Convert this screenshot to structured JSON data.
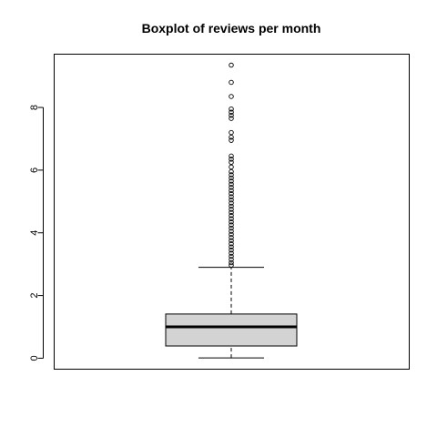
{
  "chart_data": {
    "type": "boxplot",
    "title": "Boxplot of reviews per month",
    "xlabel": "",
    "ylabel": "",
    "ylim": [
      -0.35,
      9.7
    ],
    "yticks": [
      0,
      2,
      4,
      6,
      8
    ],
    "box": {
      "whisker_low": 0.01,
      "q1": 0.39,
      "median": 1.0,
      "q3": 1.41,
      "whisker_high": 2.9
    },
    "outliers": [
      9.35,
      8.8,
      8.35,
      7.95,
      7.85,
      7.75,
      7.65,
      7.2,
      7.05,
      6.95,
      6.45,
      6.35,
      6.25,
      6.1,
      5.95,
      5.85,
      5.75,
      5.65,
      5.55,
      5.45,
      5.35,
      5.25,
      5.15,
      5.05,
      4.95,
      4.85,
      4.75,
      4.65,
      4.55,
      4.45,
      4.35,
      4.25,
      4.15,
      4.05,
      3.95,
      3.85,
      3.75,
      3.65,
      3.55,
      3.45,
      3.35,
      3.25,
      3.15,
      3.05,
      2.97
    ],
    "colors": {
      "box_fill": "#d3d3d3",
      "stroke": "#000000"
    },
    "grid": false,
    "legend": "none"
  }
}
